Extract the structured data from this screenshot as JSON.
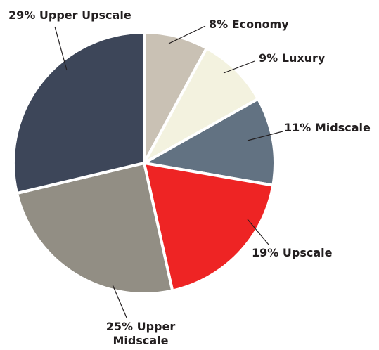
{
  "chart_data": {
    "type": "pie",
    "categories": [
      "Economy",
      "Luxury",
      "Midscale",
      "Upscale",
      "Upper Midscale",
      "Upper Upscale"
    ],
    "values": [
      8,
      9,
      11,
      19,
      25,
      29
    ],
    "value_labels": [
      "8%",
      "9%",
      "11%",
      "19%",
      "25%",
      "29%"
    ],
    "colors": [
      "#c9c1b4",
      "#f3f2df",
      "#627282",
      "#ee2424",
      "#928e84",
      "#3d4659"
    ]
  }
}
